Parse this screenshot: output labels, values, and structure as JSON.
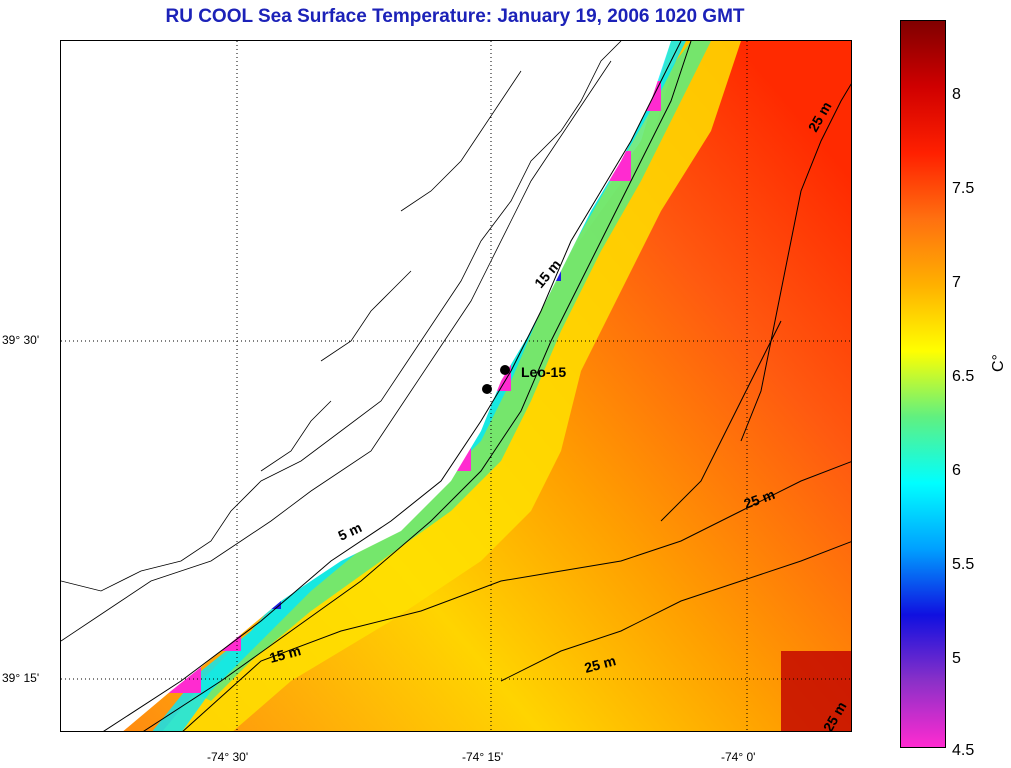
{
  "title": "RU COOL  Sea Surface Temperature:  January 19, 2006 1020 GMT",
  "map": {
    "lat_labels": [
      {
        "label": "39° 30'",
        "lat": 39.5
      },
      {
        "label": "39° 15'",
        "lat": 39.25
      }
    ],
    "lon_labels": [
      {
        "label": "-74° 30'",
        "lon": -74.5
      },
      {
        "label": "-74° 15'",
        "lon": -74.25
      },
      {
        "label": "-74° 0'",
        "lon": -74.0
      }
    ],
    "station": {
      "label": "Leo-15"
    },
    "contour_labels": [
      "5 m",
      "15 m",
      "15 m",
      "25 m",
      "25 m",
      "25 m",
      "25 m"
    ]
  },
  "colorbar": {
    "ticks": [
      "8",
      "7.5",
      "7",
      "6.5",
      "6",
      "5.5",
      "5",
      "4.5"
    ],
    "unit": "C°",
    "min": 4.5,
    "max": 8.4,
    "colors": [
      "#ff2bd0",
      "#8a30c8",
      "#1010e0",
      "#00a0ff",
      "#00ffff",
      "#60f080",
      "#ffff00",
      "#ffb000",
      "#ff7010",
      "#ff2000",
      "#d00000",
      "#800000"
    ]
  }
}
